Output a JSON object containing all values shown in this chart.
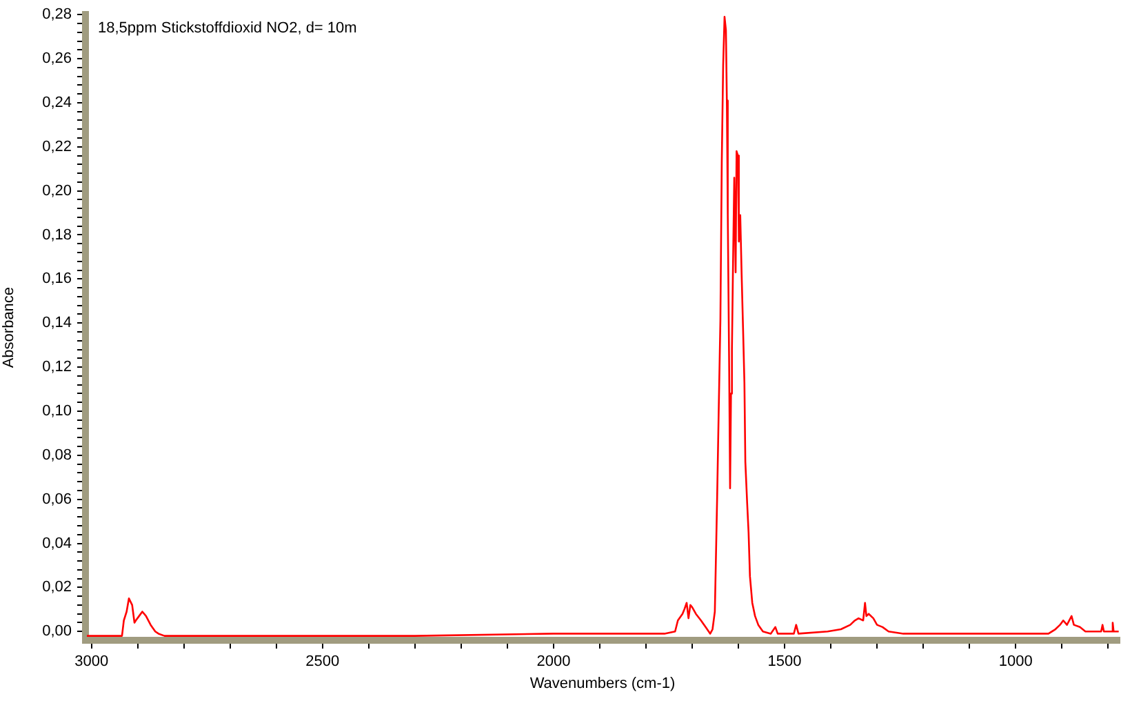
{
  "chart_data": {
    "type": "line",
    "title": "18,5ppm Stickstoffdioxid NO2, d= 10m",
    "xlabel": "Wavenumbers (cm-1)",
    "ylabel": "Absorbance",
    "color": "#ff0000",
    "marker": "none",
    "line_style": "solid",
    "x": [
      3010,
      2940,
      2934,
      2930,
      2924,
      2919,
      2912,
      2907,
      2904,
      2897,
      2890,
      2882,
      2872,
      2862,
      2855,
      2842,
      2500,
      2300,
      2000,
      1900,
      1760,
      1737,
      1731,
      1721,
      1717,
      1712,
      1708,
      1704,
      1700,
      1692,
      1681,
      1671,
      1661,
      1656,
      1651,
      1648,
      1646,
      1643,
      1639,
      1636,
      1633,
      1630,
      1627,
      1625,
      1623,
      1620,
      1618,
      1616,
      1614,
      1612,
      1609,
      1606,
      1604,
      1601,
      1599,
      1596,
      1593,
      1590,
      1587,
      1585,
      1581,
      1578,
      1575,
      1570,
      1564,
      1557,
      1547,
      1530,
      1520,
      1515,
      1480,
      1475,
      1470,
      1407,
      1378,
      1358,
      1348,
      1340,
      1330,
      1326,
      1323,
      1318,
      1308,
      1300,
      1288,
      1275,
      1243,
      929,
      914,
      904,
      897,
      889,
      879,
      874,
      861,
      849,
      815,
      812,
      809,
      792,
      790,
      788,
      777
    ],
    "values": [
      -0.002,
      -0.002,
      -0.002,
      0.005,
      0.009,
      0.015,
      0.012,
      0.004,
      0.005,
      0.007,
      0.009,
      0.007,
      0.003,
      0.0,
      -0.001,
      -0.002,
      -0.002,
      -0.002,
      -0.001,
      -0.001,
      -0.001,
      0.0,
      0.005,
      0.008,
      0.01,
      0.013,
      0.006,
      0.012,
      0.011,
      0.008,
      0.005,
      0.002,
      -0.001,
      0.001,
      0.009,
      0.04,
      0.061,
      0.096,
      0.141,
      0.213,
      0.257,
      0.279,
      0.273,
      0.241,
      0.189,
      0.12,
      0.065,
      0.108,
      0.128,
      0.161,
      0.206,
      0.163,
      0.218,
      0.216,
      0.177,
      0.189,
      0.162,
      0.138,
      0.113,
      0.077,
      0.058,
      0.045,
      0.025,
      0.013,
      0.007,
      0.003,
      0.0,
      -0.001,
      0.002,
      -0.001,
      -0.001,
      0.003,
      -0.001,
      0.0,
      0.001,
      0.003,
      0.005,
      0.006,
      0.005,
      0.013,
      0.007,
      0.008,
      0.006,
      0.003,
      0.002,
      0.0,
      -0.001,
      -0.001,
      0.001,
      0.003,
      0.005,
      0.003,
      0.007,
      0.003,
      0.002,
      0.0,
      0.0,
      0.003,
      0.0,
      0.0,
      0.004,
      0.0,
      0.0
    ],
    "xlim": [
      3013,
      775
    ],
    "xticks": [
      3000,
      {
        "value": 2900,
        "label": null
      },
      {
        "value": 2800,
        "label": null
      },
      {
        "value": 2700,
        "label": null
      },
      {
        "value": 2600,
        "label": null
      },
      2500,
      {
        "value": 2400,
        "label": null
      },
      {
        "value": 2300,
        "label": null
      },
      {
        "value": 2200,
        "label": null
      },
      {
        "value": 2100,
        "label": null
      },
      2000,
      {
        "value": 1900,
        "label": null
      },
      {
        "value": 1800,
        "label": null
      },
      {
        "value": 1700,
        "label": null
      },
      {
        "value": 1600,
        "label": null
      },
      1500,
      {
        "value": 1400,
        "label": null
      },
      {
        "value": 1300,
        "label": null
      },
      {
        "value": 1200,
        "label": null
      },
      {
        "value": 1100,
        "label": null
      },
      1000,
      {
        "value": 900,
        "label": null
      },
      {
        "value": 800,
        "label": null
      }
    ],
    "ylim": [
      -0.004,
      0.28
    ],
    "yticks": [
      {
        "value": 0,
        "label": "0,00"
      },
      {
        "value": 0.004,
        "label": null
      },
      {
        "value": 0.008,
        "label": null
      },
      {
        "value": 0.012,
        "label": null
      },
      {
        "value": 0.016,
        "label": null
      },
      {
        "value": 0.02,
        "label": "0,02"
      },
      {
        "value": 0.024,
        "label": null
      },
      {
        "value": 0.028,
        "label": null
      },
      {
        "value": 0.032,
        "label": null
      },
      {
        "value": 0.036,
        "label": null
      },
      {
        "value": 0.04,
        "label": "0,04"
      },
      {
        "value": 0.044,
        "label": null
      },
      {
        "value": 0.048,
        "label": null
      },
      {
        "value": 0.052,
        "label": null
      },
      {
        "value": 0.056,
        "label": null
      },
      {
        "value": 0.06,
        "label": "0,06"
      },
      {
        "value": 0.064,
        "label": null
      },
      {
        "value": 0.068,
        "label": null
      },
      {
        "value": 0.072,
        "label": null
      },
      {
        "value": 0.076,
        "label": null
      },
      {
        "value": 0.08,
        "label": "0,08"
      },
      {
        "value": 0.084,
        "label": null
      },
      {
        "value": 0.088,
        "label": null
      },
      {
        "value": 0.092,
        "label": null
      },
      {
        "value": 0.096,
        "label": null
      },
      {
        "value": 0.1,
        "label": "0,10"
      },
      {
        "value": 0.104,
        "label": null
      },
      {
        "value": 0.108,
        "label": null
      },
      {
        "value": 0.112,
        "label": null
      },
      {
        "value": 0.116,
        "label": null
      },
      {
        "value": 0.12,
        "label": "0,12"
      },
      {
        "value": 0.124,
        "label": null
      },
      {
        "value": 0.128,
        "label": null
      },
      {
        "value": 0.132,
        "label": null
      },
      {
        "value": 0.136,
        "label": null
      },
      {
        "value": 0.14,
        "label": "0,14"
      },
      {
        "value": 0.144,
        "label": null
      },
      {
        "value": 0.148,
        "label": null
      },
      {
        "value": 0.152,
        "label": null
      },
      {
        "value": 0.156,
        "label": null
      },
      {
        "value": 0.16,
        "label": "0,16"
      },
      {
        "value": 0.164,
        "label": null
      },
      {
        "value": 0.168,
        "label": null
      },
      {
        "value": 0.172,
        "label": null
      },
      {
        "value": 0.176,
        "label": null
      },
      {
        "value": 0.18,
        "label": "0,18"
      },
      {
        "value": 0.184,
        "label": null
      },
      {
        "value": 0.188,
        "label": null
      },
      {
        "value": 0.192,
        "label": null
      },
      {
        "value": 0.196,
        "label": null
      },
      {
        "value": 0.2,
        "label": "0,20"
      },
      {
        "value": 0.204,
        "label": null
      },
      {
        "value": 0.208,
        "label": null
      },
      {
        "value": 0.212,
        "label": null
      },
      {
        "value": 0.216,
        "label": null
      },
      {
        "value": 0.22,
        "label": "0,22"
      },
      {
        "value": 0.224,
        "label": null
      },
      {
        "value": 0.228,
        "label": null
      },
      {
        "value": 0.232,
        "label": null
      },
      {
        "value": 0.236,
        "label": null
      },
      {
        "value": 0.24,
        "label": "0,24"
      },
      {
        "value": 0.244,
        "label": null
      },
      {
        "value": 0.248,
        "label": null
      },
      {
        "value": 0.252,
        "label": null
      },
      {
        "value": 0.256,
        "label": null
      },
      {
        "value": 0.26,
        "label": "0,26"
      },
      {
        "value": 0.264,
        "label": null
      },
      {
        "value": 0.268,
        "label": null
      },
      {
        "value": 0.272,
        "label": null
      },
      {
        "value": 0.276,
        "label": null
      },
      {
        "value": 0.28,
        "label": "0,28"
      }
    ]
  }
}
